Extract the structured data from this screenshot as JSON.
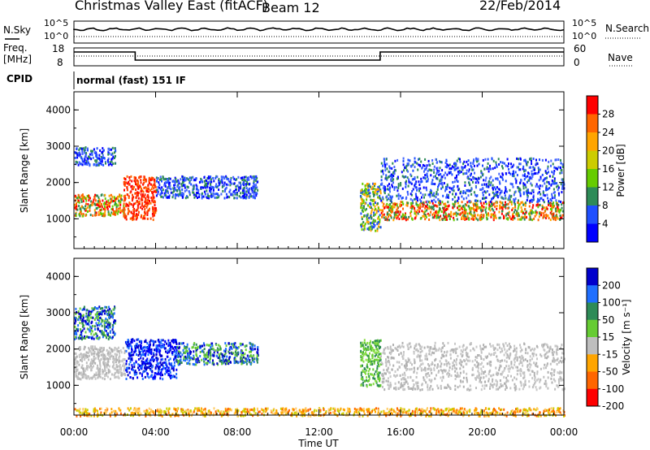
{
  "header": {
    "station": "Christmas Valley East (fitACF)",
    "beam": "Beam 12",
    "date": "22/Feb/2014"
  },
  "strip": {
    "nsky_label": "N.Sky",
    "nsky_ticks": [
      "10^5",
      "10^0"
    ],
    "nsearch_label": "N.Search",
    "nsearch_ticks": [
      "10^5",
      "10^0"
    ],
    "freq_label_1": "Freq.",
    "freq_label_2": "[MHz]",
    "freq_ticks": [
      "18",
      "8"
    ],
    "nave_label": "Nave",
    "nave_ticks": [
      "60",
      "0"
    ],
    "cpid_label": "CPID",
    "cpid_value": "normal (fast) 151 IF"
  },
  "chart_data": [
    {
      "type": "heatmap",
      "name": "power",
      "xlabel": "",
      "ylabel": "Slant Range [km]",
      "xlim": [
        "00:00",
        "00:00"
      ],
      "ylim": [
        180,
        4500
      ],
      "yticks": [
        "1000",
        "2000",
        "3000",
        "4000"
      ],
      "colorbar": {
        "label": "Power [dB]",
        "ticks": [
          "28",
          "24",
          "20",
          "16",
          "12",
          "8",
          "4"
        ],
        "colors": [
          "#ff0000",
          "#ff6600",
          "#ffa500",
          "#cccc00",
          "#66cc00",
          "#2e8b57",
          "#1f4fff",
          "#0000ff"
        ]
      },
      "features": [
        {
          "t": [
            0.0,
            2.5
          ],
          "range": [
            1100,
            1700
          ],
          "level": "high"
        },
        {
          "t": [
            2.4,
            4.0
          ],
          "range": [
            1000,
            2200
          ],
          "level": "very-high"
        },
        {
          "t": [
            4.0,
            9.0
          ],
          "range": [
            1600,
            2200
          ],
          "level": "low"
        },
        {
          "t": [
            0.0,
            2.0
          ],
          "range": [
            2500,
            3000
          ],
          "level": "low"
        },
        {
          "t": [
            14.0,
            15.0
          ],
          "range": [
            700,
            2000
          ],
          "level": "medium"
        },
        {
          "t": [
            15.0,
            24.0
          ],
          "range": [
            1000,
            1500
          ],
          "level": "high"
        },
        {
          "t": [
            15.0,
            24.0
          ],
          "range": [
            1500,
            2700
          ],
          "level": "low"
        }
      ]
    },
    {
      "type": "heatmap",
      "name": "velocity",
      "xlabel": "Time UT",
      "ylabel": "Slant Range [km]",
      "xticks": [
        "00:00",
        "04:00",
        "08:00",
        "12:00",
        "16:00",
        "20:00",
        "00:00"
      ],
      "ylim": [
        180,
        4500
      ],
      "yticks": [
        "1000",
        "2000",
        "3000",
        "4000"
      ],
      "colorbar": {
        "label": "Velocity [m s⁻¹]",
        "ticks": [
          "200",
          "100",
          "50",
          "15",
          "-15",
          "-50",
          "-100",
          "-200"
        ],
        "colors": [
          "#0000cc",
          "#1f6fff",
          "#2e8b57",
          "#66cc33",
          "#bebebe",
          "#ffa500",
          "#ff6600",
          "#ff0000"
        ]
      },
      "features": [
        {
          "t": [
            0.0,
            2.5
          ],
          "range": [
            1200,
            2100
          ],
          "level": "ground"
        },
        {
          "t": [
            0.0,
            2.0
          ],
          "range": [
            2300,
            3200
          ],
          "level": "positive"
        },
        {
          "t": [
            2.5,
            5.0
          ],
          "range": [
            1200,
            2300
          ],
          "level": "strong-positive"
        },
        {
          "t": [
            5.0,
            9.0
          ],
          "range": [
            1600,
            2200
          ],
          "level": "positive"
        },
        {
          "t": [
            14.0,
            15.0
          ],
          "range": [
            1000,
            2300
          ],
          "level": "slow-positive"
        },
        {
          "t": [
            15.0,
            24.0
          ],
          "range": [
            900,
            2200
          ],
          "level": "ground"
        },
        {
          "t": [
            0.0,
            24.0
          ],
          "range": [
            180,
            400
          ],
          "level": "slow-negative"
        }
      ]
    }
  ]
}
